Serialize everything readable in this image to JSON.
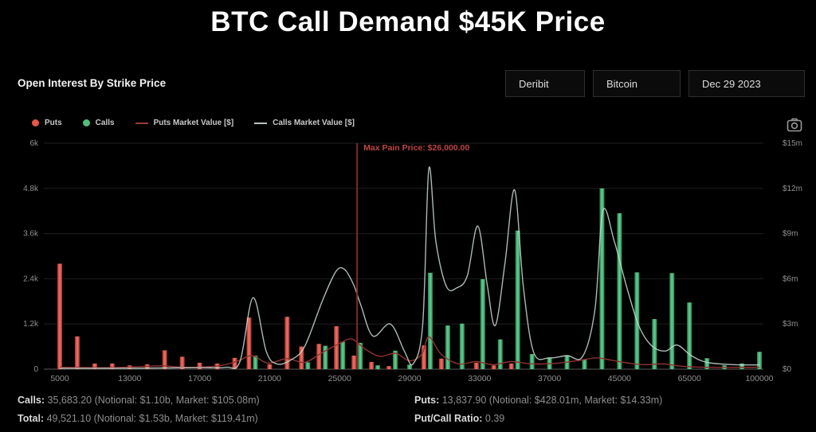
{
  "title": "BTC Call Demand $45K Price",
  "header": {
    "subtitle": "Open Interest By Strike Price",
    "filters": [
      "Deribit",
      "Bitcoin",
      "Dec 29 2023"
    ]
  },
  "legend": [
    {
      "label": "Puts",
      "marker": "dot",
      "color": "#e4564b"
    },
    {
      "label": "Calls",
      "marker": "dot",
      "color": "#4dbd7c"
    },
    {
      "label": "Puts Market Value [$]",
      "marker": "line",
      "color": "#9e3a3a"
    },
    {
      "label": "Calls Market Value [$]",
      "marker": "line",
      "color": "#b9c4bf"
    }
  ],
  "colors": {
    "background": "#000000",
    "puts_bar": "#e05449",
    "calls_bar": "#4dbd7c",
    "puts_line": "#933232",
    "calls_line": "#c9d9d1",
    "max_pain": "#7f2a2a",
    "max_pain_text": "#c04545",
    "tick_text": "#909090",
    "grid": "#1f1f1f",
    "axis": "#5a5a5a"
  },
  "chart_data": {
    "type": "bar+line",
    "title": "Open Interest By Strike Price",
    "x_axis": {
      "num_slots": 41,
      "tick_labels": [
        "5000",
        "13000",
        "17000",
        "21000",
        "25000",
        "29000",
        "33000",
        "37000",
        "45000",
        "65000",
        "100000"
      ],
      "tick_slots": [
        0,
        4,
        8,
        12,
        16,
        20,
        24,
        28,
        32,
        36,
        40
      ]
    },
    "y_left": {
      "ticks": [
        "6k",
        "4.8k",
        "3.6k",
        "2.4k",
        "1.2k",
        "0"
      ],
      "max": 6000
    },
    "y_right": {
      "ticks": [
        "$15m",
        "$12m",
        "$9m",
        "$6m",
        "$3m",
        "$0"
      ],
      "max": 15
    },
    "max_pain": {
      "slot": 17,
      "label": "Max Pain Price: $26,000.00"
    },
    "bars": [
      {
        "slot": 0,
        "puts": 2800,
        "calls": 0
      },
      {
        "slot": 1,
        "puts": 870,
        "calls": 0
      },
      {
        "slot": 2,
        "puts": 150,
        "calls": 0
      },
      {
        "slot": 3,
        "puts": 150,
        "calls": 0
      },
      {
        "slot": 4,
        "puts": 100,
        "calls": 0
      },
      {
        "slot": 5,
        "puts": 130,
        "calls": 0
      },
      {
        "slot": 6,
        "puts": 500,
        "calls": 0
      },
      {
        "slot": 7,
        "puts": 330,
        "calls": 0
      },
      {
        "slot": 8,
        "puts": 170,
        "calls": 0
      },
      {
        "slot": 9,
        "puts": 150,
        "calls": 0
      },
      {
        "slot": 10,
        "puts": 300,
        "calls": 0
      },
      {
        "slot": 11,
        "puts": 1370,
        "calls": 360
      },
      {
        "slot": 12,
        "puts": 130,
        "calls": 0
      },
      {
        "slot": 13,
        "puts": 1390,
        "calls": 0
      },
      {
        "slot": 14,
        "puts": 600,
        "calls": 180
      },
      {
        "slot": 15,
        "puts": 670,
        "calls": 620
      },
      {
        "slot": 16,
        "puts": 1140,
        "calls": 730
      },
      {
        "slot": 17,
        "puts": 360,
        "calls": 700
      },
      {
        "slot": 18,
        "puts": 190,
        "calls": 100
      },
      {
        "slot": 19,
        "puts": 80,
        "calls": 490
      },
      {
        "slot": 20,
        "puts": 0,
        "calls": 120
      },
      {
        "slot": 21,
        "puts": 630,
        "calls": 2560
      },
      {
        "slot": 22,
        "puts": 280,
        "calls": 1160
      },
      {
        "slot": 23,
        "puts": 0,
        "calls": 1210
      },
      {
        "slot": 24,
        "puts": 170,
        "calls": 2390
      },
      {
        "slot": 25,
        "puts": 100,
        "calls": 790
      },
      {
        "slot": 26,
        "puts": 150,
        "calls": 3680
      },
      {
        "slot": 27,
        "puts": 0,
        "calls": 400
      },
      {
        "slot": 28,
        "puts": 0,
        "calls": 300
      },
      {
        "slot": 29,
        "puts": 0,
        "calls": 360
      },
      {
        "slot": 30,
        "puts": 0,
        "calls": 260
      },
      {
        "slot": 31,
        "puts": 0,
        "calls": 4800
      },
      {
        "slot": 32,
        "puts": 0,
        "calls": 4140
      },
      {
        "slot": 33,
        "puts": 0,
        "calls": 2570
      },
      {
        "slot": 34,
        "puts": 0,
        "calls": 1330
      },
      {
        "slot": 35,
        "puts": 0,
        "calls": 2550
      },
      {
        "slot": 36,
        "puts": 0,
        "calls": 1770
      },
      {
        "slot": 37,
        "puts": 0,
        "calls": 290
      },
      {
        "slot": 38,
        "puts": 0,
        "calls": 100
      },
      {
        "slot": 39,
        "puts": 0,
        "calls": 150
      },
      {
        "slot": 40,
        "puts": 0,
        "calls": 460
      }
    ],
    "lines": {
      "calls_market_value_musd": [
        [
          0,
          0.06
        ],
        [
          3,
          0.06
        ],
        [
          6,
          0.08
        ],
        [
          8,
          0.1
        ],
        [
          9.5,
          0.12
        ],
        [
          10.3,
          0.5
        ],
        [
          11.05,
          4.75
        ],
        [
          11.8,
          1.2
        ],
        [
          12.4,
          0.35
        ],
        [
          13.2,
          0.6
        ],
        [
          14,
          1.5
        ],
        [
          15,
          4.5
        ],
        [
          15.8,
          6.5
        ],
        [
          16.3,
          6.6
        ],
        [
          16.8,
          5.6
        ],
        [
          17.2,
          4.3
        ],
        [
          17.9,
          2.2
        ],
        [
          18.9,
          3.0
        ],
        [
          19.7,
          1.2
        ],
        [
          20.2,
          0.35
        ],
        [
          20.75,
          3.0
        ],
        [
          21.1,
          13.3
        ],
        [
          21.5,
          8.5
        ],
        [
          22.1,
          5.5
        ],
        [
          22.7,
          5.4
        ],
        [
          23.3,
          6.2
        ],
        [
          23.9,
          9.5
        ],
        [
          24.45,
          5.5
        ],
        [
          24.9,
          2.9
        ],
        [
          25.45,
          7.0
        ],
        [
          26,
          11.9
        ],
        [
          26.5,
          5.5
        ],
        [
          27.1,
          1.1
        ],
        [
          28,
          0.75
        ],
        [
          29,
          0.9
        ],
        [
          29.9,
          0.85
        ],
        [
          30.6,
          4.0
        ],
        [
          31.05,
          10.5
        ],
        [
          31.7,
          8.5
        ],
        [
          32.4,
          5.5
        ],
        [
          33.1,
          2.9
        ],
        [
          33.8,
          1.6
        ],
        [
          34.6,
          1.2
        ],
        [
          35.3,
          1.6
        ],
        [
          36.1,
          0.9
        ],
        [
          37,
          0.45
        ],
        [
          38.5,
          0.3
        ],
        [
          40,
          0.28
        ]
      ],
      "puts_market_value_musd": [
        [
          0,
          0.12
        ],
        [
          3,
          0.1
        ],
        [
          5.8,
          0.22
        ],
        [
          7,
          0.12
        ],
        [
          9,
          0.2
        ],
        [
          10.2,
          0.55
        ],
        [
          11,
          0.9
        ],
        [
          11.9,
          0.4
        ],
        [
          13,
          0.7
        ],
        [
          14,
          0.45
        ],
        [
          15,
          1.1
        ],
        [
          16,
          1.7
        ],
        [
          16.7,
          2.0
        ],
        [
          17.5,
          1.3
        ],
        [
          18.3,
          0.85
        ],
        [
          19.2,
          1.05
        ],
        [
          20,
          0.55
        ],
        [
          20.7,
          1.0
        ],
        [
          21.1,
          2.15
        ],
        [
          21.8,
          1.0
        ],
        [
          22.8,
          0.35
        ],
        [
          23.8,
          0.5
        ],
        [
          24.8,
          0.3
        ],
        [
          25.8,
          0.5
        ],
        [
          27,
          0.35
        ],
        [
          28.5,
          0.4
        ],
        [
          29.8,
          0.6
        ],
        [
          30.7,
          0.75
        ],
        [
          31.5,
          0.6
        ],
        [
          32.5,
          0.4
        ],
        [
          33.5,
          0.3
        ],
        [
          34.5,
          0.35
        ],
        [
          35.5,
          0.2
        ],
        [
          37,
          0.12
        ],
        [
          40,
          0.12
        ]
      ]
    }
  },
  "footer": {
    "calls_label": "Calls:",
    "calls_value": " 35,683.20 (Notional: $1.10b, Market: $105.08m)",
    "total_label": "Total:",
    "total_value": " 49,521.10 (Notional: $1.53b, Market: $119.41m)",
    "puts_label": "Puts:",
    "puts_value": " 13,837.90 (Notional: $428.01m, Market: $14.33m)",
    "ratio_label": "Put/Call Ratio:",
    "ratio_value": " 0.39"
  }
}
